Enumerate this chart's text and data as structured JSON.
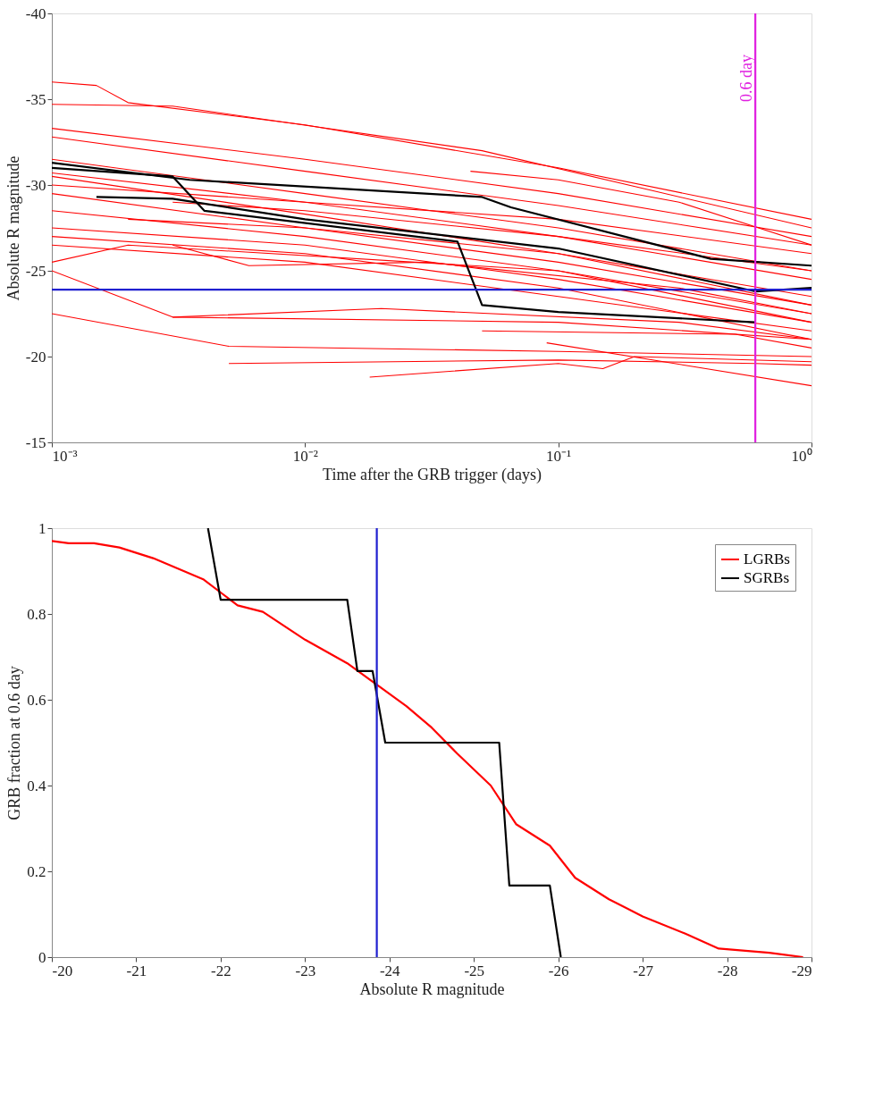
{
  "chart_data": [
    {
      "type": "line",
      "xlabel": "Time after the GRB trigger (days)",
      "ylabel": "Absolute R magnitude",
      "log": "x",
      "grid": false,
      "legend": false,
      "xlim": [
        0.001,
        1
      ],
      "ylim": [
        -15,
        -40
      ],
      "xticks": [
        {
          "value": 0.001,
          "label": "10⁻³"
        },
        {
          "value": 0.01,
          "label": "10⁻²"
        },
        {
          "value": 0.1,
          "label": "10⁻¹"
        },
        {
          "value": 1,
          "label": "10⁰"
        }
      ],
      "yticks": [
        -40,
        -35,
        -30,
        -25,
        -20,
        -15
      ],
      "ref_lines": [
        {
          "axis": "x",
          "value": 0.6,
          "label": "0.6 day",
          "color": "#e020e0"
        },
        {
          "axis": "y",
          "value": -23.9,
          "color": "#2020d0"
        }
      ],
      "series": [
        {
          "color": "#ff0000",
          "x": [
            0.001,
            0.0015,
            0.002,
            0.01,
            0.1,
            1
          ],
          "values": [
            -36,
            -35.8,
            -34.8,
            -33.5,
            -31,
            -28
          ]
        },
        {
          "color": "#ff0000",
          "x": [
            0.001,
            0.003,
            0.05,
            1
          ],
          "values": [
            -34.7,
            -34.6,
            -32,
            -27.5
          ]
        },
        {
          "color": "#ff0000",
          "x": [
            0.001,
            0.01,
            0.1,
            1
          ],
          "values": [
            -33.3,
            -31.5,
            -29.5,
            -27
          ]
        },
        {
          "color": "#ff0000",
          "x": [
            0.001,
            0.01,
            0.1,
            1
          ],
          "values": [
            -32.8,
            -30.8,
            -28.8,
            -26.5
          ]
        },
        {
          "color": "#ff0000",
          "x": [
            0.001,
            0.01,
            0.1,
            1
          ],
          "values": [
            -31.5,
            -29.5,
            -27.5,
            -25
          ]
        },
        {
          "color": "#ff0000",
          "x": [
            0.001,
            0.01,
            0.1,
            1
          ],
          "values": [
            -30.7,
            -29,
            -27,
            -24.5
          ]
        },
        {
          "color": "#ff0000",
          "x": [
            0.001,
            0.01,
            0.1,
            1
          ],
          "values": [
            -30.5,
            -28.3,
            -26,
            -23.5
          ]
        },
        {
          "color": "#ff0000",
          "x": [
            0.001,
            0.01,
            0.1,
            1
          ],
          "values": [
            -29.5,
            -27.5,
            -25.5,
            -23
          ]
        },
        {
          "color": "#ff0000",
          "x": [
            0.001,
            0.01,
            0.1,
            1
          ],
          "values": [
            -28.5,
            -27,
            -25,
            -22.5
          ]
        },
        {
          "color": "#ff0000",
          "x": [
            0.001,
            0.01,
            0.1,
            1
          ],
          "values": [
            -27.5,
            -26.5,
            -24.5,
            -22
          ]
        },
        {
          "color": "#ff0000",
          "x": [
            0.001,
            0.01,
            0.1,
            1
          ],
          "values": [
            -27,
            -26,
            -24,
            -21
          ]
        },
        {
          "color": "#ff0000",
          "x": [
            0.001,
            0.01,
            0.1,
            1
          ],
          "values": [
            -26.5,
            -25.5,
            -23.5,
            -21.5
          ]
        },
        {
          "color": "#ff0000",
          "x": [
            0.001,
            0.002,
            0.1,
            1
          ],
          "values": [
            -25.5,
            -26.5,
            -25,
            -22
          ]
        },
        {
          "color": "#ff0000",
          "x": [
            0.001,
            0.005,
            0.1,
            1
          ],
          "values": [
            -22.5,
            -20.6,
            -20.3,
            -20
          ]
        },
        {
          "color": "#ff0000",
          "x": [
            0.001,
            0.003,
            0.1,
            1
          ],
          "values": [
            -25,
            -22.3,
            -22,
            -21
          ]
        },
        {
          "color": "#ff0000",
          "x": [
            0.003,
            0.02,
            0.3,
            1
          ],
          "values": [
            -22.3,
            -22.8,
            -22,
            -21
          ]
        },
        {
          "color": "#ff0000",
          "x": [
            0.005,
            0.1,
            0.6,
            1
          ],
          "values": [
            -19.6,
            -19.8,
            -19.6,
            -19.5
          ]
        },
        {
          "color": "#ff0000",
          "x": [
            0.018,
            0.1,
            0.15,
            0.2,
            1
          ],
          "values": [
            -18.8,
            -19.6,
            -19.3,
            -20,
            -19.7
          ]
        },
        {
          "color": "#ff0000",
          "x": [
            0.05,
            0.5,
            1
          ],
          "values": [
            -21.5,
            -21.3,
            -20.5
          ]
        },
        {
          "color": "#ff0000",
          "x": [
            0.09,
            1
          ],
          "values": [
            -20.8,
            -18.3
          ]
        },
        {
          "color": "#ff0000",
          "x": [
            0.045,
            0.1,
            0.3,
            1
          ],
          "values": [
            -30.8,
            -30.3,
            -29,
            -26.5
          ]
        },
        {
          "color": "#ff0000",
          "x": [
            0.003,
            0.01,
            0.1,
            1
          ],
          "values": [
            -29,
            -28.5,
            -27,
            -25
          ]
        },
        {
          "color": "#ff0000",
          "x": [
            0.002,
            0.01,
            0.1,
            1
          ],
          "values": [
            -28,
            -27.5,
            -26,
            -23
          ]
        },
        {
          "color": "#ff0000",
          "x": [
            0.001,
            0.01,
            0.1,
            1
          ],
          "values": [
            -30,
            -29,
            -28,
            -26
          ]
        },
        {
          "color": "#ff0000",
          "x": [
            0.003,
            0.006,
            0.03,
            0.3,
            1
          ],
          "values": [
            -26.5,
            -25.3,
            -25.5,
            -24,
            -22.5
          ]
        },
        {
          "color": "#000000",
          "x": [
            0.001,
            0.0035,
            0.05,
            0.065,
            0.4,
            1
          ],
          "values": [
            -31.3,
            -30.3,
            -29.3,
            -28.7,
            -25.7,
            -25.3
          ]
        },
        {
          "color": "#000000",
          "x": [
            0.0015,
            0.003,
            0.01,
            0.1,
            0.6,
            1
          ],
          "values": [
            -29.3,
            -29.2,
            -28,
            -26.3,
            -23.8,
            -24
          ]
        },
        {
          "color": "#000000",
          "x": [
            0.001,
            0.003,
            0.004,
            0.04,
            0.05,
            0.1,
            0.6
          ],
          "values": [
            -31,
            -30.5,
            -28.5,
            -26.7,
            -23,
            -22.6,
            -22
          ]
        }
      ]
    },
    {
      "type": "line",
      "xlabel": "Absolute R magnitude",
      "ylabel": "GRB fraction at 0.6 day",
      "grid": false,
      "legend": "top right",
      "xlim": [
        -20,
        -29
      ],
      "ylim": [
        0,
        1
      ],
      "xticks": [
        -20,
        -21,
        -22,
        -23,
        -24,
        -25,
        -26,
        -27,
        -28,
        -29
      ],
      "yticks": [
        0,
        0.2,
        0.4,
        0.6,
        0.8,
        1
      ],
      "ref_lines": [
        {
          "axis": "x",
          "value": -23.85,
          "color": "#2020d0"
        }
      ],
      "series": [
        {
          "name": "LGRBs",
          "color": "#ff0000",
          "x": [
            -20,
            -20.2,
            -20.5,
            -20.8,
            -21.2,
            -21.8,
            -22,
            -22.2,
            -22.5,
            -23,
            -23.5,
            -23.85,
            -24.2,
            -24.5,
            -24.8,
            -25.2,
            -25.5,
            -25.9,
            -26.2,
            -26.6,
            -27,
            -27.5,
            -27.9,
            -28.5,
            -28.9
          ],
          "values": [
            0.97,
            0.965,
            0.965,
            0.955,
            0.93,
            0.88,
            0.85,
            0.82,
            0.805,
            0.74,
            0.685,
            0.635,
            0.585,
            0.535,
            0.475,
            0.4,
            0.31,
            0.26,
            0.185,
            0.135,
            0.095,
            0.055,
            0.02,
            0.01,
            0
          ]
        },
        {
          "name": "SGRBs",
          "color": "#000000",
          "x": [
            -21.85,
            -22,
            -23.5,
            -23.62,
            -23.8,
            -23.95,
            -25.3,
            -25.42,
            -25.9,
            -26.03
          ],
          "values": [
            1,
            0.833,
            0.833,
            0.667,
            0.667,
            0.5,
            0.5,
            0.167,
            0.167,
            0
          ]
        }
      ]
    }
  ]
}
